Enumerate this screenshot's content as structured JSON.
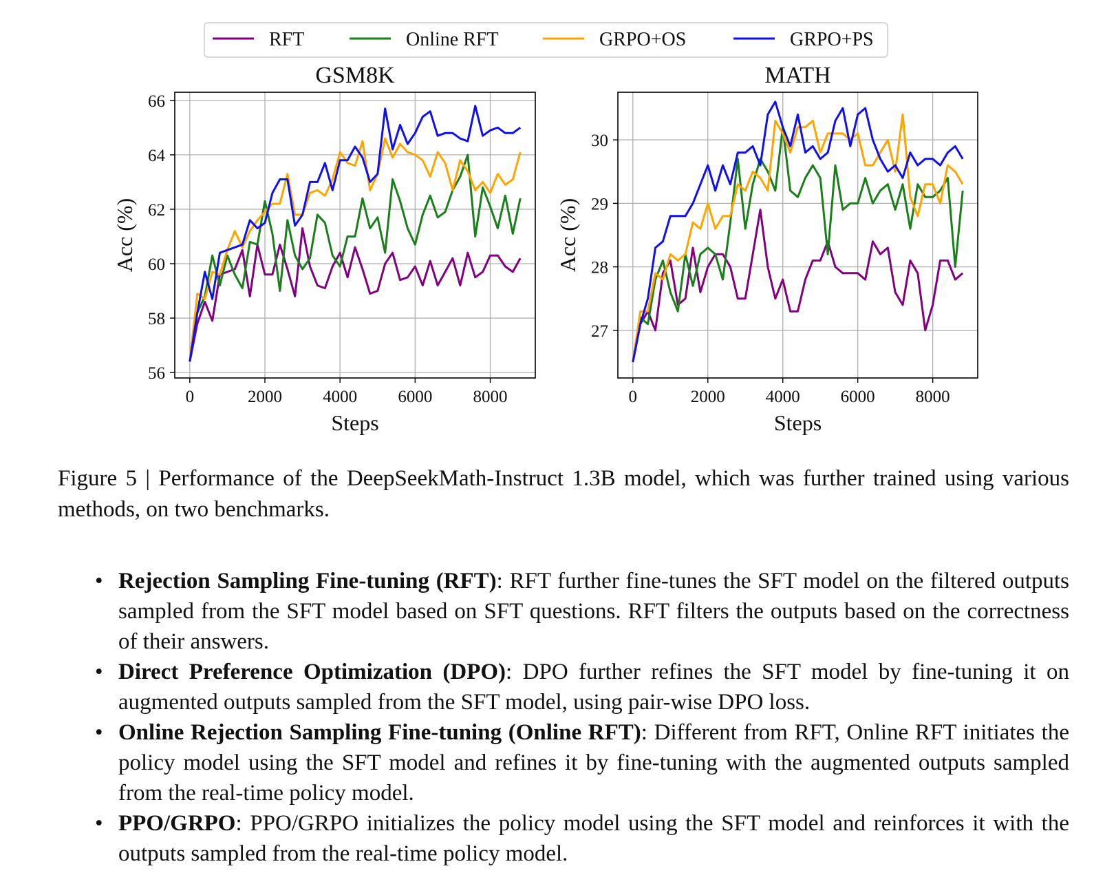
{
  "colors": {
    "RFT": "#800080",
    "Online RFT": "#1a7f1a",
    "GRPO+OS": "#ffa500",
    "GRPO+PS": "#1010ee"
  },
  "legend": [
    "RFT",
    "Online RFT",
    "GRPO+OS",
    "GRPO+PS"
  ],
  "chart_data": [
    {
      "type": "line",
      "title": "GSM8K",
      "xlabel": "Steps",
      "ylabel": "Acc (%)",
      "xlim": [
        -400,
        9200
      ],
      "ylim": [
        55.8,
        66.3
      ],
      "xticks": [
        0,
        2000,
        4000,
        6000,
        8000
      ],
      "yticks": [
        56,
        58,
        60,
        62,
        64,
        66
      ],
      "grid": true,
      "x": [
        0,
        200,
        400,
        600,
        800,
        1000,
        1200,
        1400,
        1600,
        1800,
        2000,
        2200,
        2400,
        2600,
        2800,
        3000,
        3200,
        3400,
        3600,
        3800,
        4000,
        4200,
        4400,
        4600,
        4800,
        5000,
        5200,
        5400,
        5600,
        5800,
        6000,
        6200,
        6400,
        6600,
        6800,
        7000,
        7200,
        7400,
        7600,
        7800,
        8000,
        8200,
        8400,
        8600,
        8800
      ],
      "series": [
        {
          "name": "RFT",
          "values": [
            56.4,
            57.8,
            58.6,
            57.9,
            59.6,
            59.7,
            59.8,
            60.5,
            58.8,
            60.7,
            59.6,
            59.6,
            60.7,
            59.8,
            58.8,
            61.3,
            59.9,
            59.2,
            59.1,
            59.9,
            60.4,
            59.5,
            60.6,
            59.8,
            58.9,
            59.0,
            60.0,
            60.4,
            59.4,
            59.5,
            59.9,
            59.2,
            60.1,
            59.2,
            59.7,
            60.2,
            59.2,
            60.4,
            59.5,
            59.7,
            60.3,
            60.3,
            59.9,
            59.7,
            60.2
          ]
        },
        {
          "name": "Online RFT",
          "values": [
            56.4,
            58.2,
            58.8,
            60.3,
            59.2,
            60.3,
            59.6,
            59.1,
            60.8,
            60.7,
            62.3,
            61.1,
            59.0,
            61.6,
            60.3,
            59.8,
            60.2,
            61.8,
            61.5,
            60.3,
            59.9,
            61.0,
            61.0,
            62.4,
            61.3,
            61.7,
            60.4,
            63.1,
            62.3,
            61.3,
            60.7,
            61.8,
            62.5,
            61.7,
            61.9,
            62.7,
            63.2,
            64.0,
            61.0,
            62.8,
            62.1,
            61.3,
            62.5,
            61.1,
            62.4
          ]
        },
        {
          "name": "GRPO+OS",
          "values": [
            56.4,
            58.9,
            58.7,
            59.7,
            59.6,
            60.5,
            61.2,
            60.6,
            61.2,
            61.6,
            61.9,
            62.2,
            62.2,
            63.3,
            61.8,
            61.8,
            62.6,
            62.7,
            62.5,
            63.1,
            64.1,
            63.7,
            63.6,
            64.5,
            62.7,
            63.3,
            64.6,
            63.9,
            64.4,
            64.1,
            64.0,
            63.8,
            63.2,
            64.1,
            63.7,
            62.7,
            63.8,
            63.4,
            62.7,
            63.0,
            62.6,
            63.3,
            62.9,
            63.1,
            64.1
          ]
        },
        {
          "name": "GRPO+PS",
          "values": [
            56.4,
            58.2,
            59.7,
            58.7,
            60.4,
            60.5,
            60.6,
            60.7,
            61.6,
            61.3,
            61.5,
            62.6,
            63.1,
            63.1,
            61.4,
            61.8,
            63.0,
            63.0,
            63.7,
            62.7,
            63.8,
            63.8,
            64.3,
            63.9,
            63.0,
            63.3,
            65.7,
            64.2,
            65.1,
            64.4,
            64.8,
            65.4,
            65.6,
            64.7,
            64.8,
            64.8,
            64.6,
            64.5,
            65.8,
            64.7,
            64.9,
            65.0,
            64.8,
            64.8,
            65.0
          ]
        }
      ]
    },
    {
      "type": "line",
      "title": "MATH",
      "xlabel": "Steps",
      "ylabel": "Acc (%)",
      "xlim": [
        -400,
        9200
      ],
      "ylim": [
        26.25,
        30.75
      ],
      "xticks": [
        0,
        2000,
        4000,
        6000,
        8000
      ],
      "yticks": [
        27,
        28,
        29,
        30
      ],
      "grid": true,
      "x": [
        0,
        200,
        400,
        600,
        800,
        1000,
        1200,
        1400,
        1600,
        1800,
        2000,
        2200,
        2400,
        2600,
        2800,
        3000,
        3200,
        3400,
        3600,
        3800,
        4000,
        4200,
        4400,
        4600,
        4800,
        5000,
        5200,
        5400,
        5600,
        5800,
        6000,
        6200,
        6400,
        6600,
        6800,
        7000,
        7200,
        7400,
        7600,
        7800,
        8000,
        8200,
        8400,
        8600,
        8800
      ],
      "series": [
        {
          "name": "RFT",
          "values": [
            26.5,
            27.1,
            27.3,
            27.0,
            27.9,
            28.1,
            27.4,
            27.5,
            28.3,
            27.6,
            28.0,
            28.2,
            28.2,
            28.0,
            27.5,
            27.5,
            28.2,
            28.9,
            28.0,
            27.5,
            27.8,
            27.3,
            27.3,
            27.8,
            28.1,
            28.1,
            28.4,
            28.0,
            27.9,
            27.9,
            27.9,
            27.8,
            28.4,
            28.2,
            28.3,
            27.6,
            27.4,
            28.1,
            27.9,
            27.0,
            27.4,
            28.1,
            28.1,
            27.8,
            27.9
          ]
        },
        {
          "name": "Online RFT",
          "values": [
            26.5,
            27.2,
            27.1,
            27.8,
            28.1,
            27.6,
            27.3,
            28.2,
            27.7,
            28.2,
            28.3,
            28.2,
            27.8,
            28.7,
            29.7,
            28.6,
            29.3,
            29.7,
            29.5,
            29.2,
            30.2,
            29.2,
            29.1,
            29.4,
            29.6,
            29.4,
            28.2,
            29.6,
            28.9,
            29.0,
            29.0,
            29.4,
            29.0,
            29.2,
            29.3,
            28.9,
            29.3,
            28.6,
            29.3,
            29.1,
            29.1,
            29.2,
            29.4,
            28.0,
            29.2
          ]
        },
        {
          "name": "GRPO+OS",
          "values": [
            26.5,
            27.3,
            27.3,
            27.9,
            27.8,
            28.2,
            28.1,
            28.2,
            28.7,
            28.6,
            29.0,
            28.6,
            28.8,
            28.8,
            29.3,
            29.2,
            29.5,
            29.4,
            29.2,
            30.3,
            30.1,
            29.8,
            30.2,
            30.2,
            30.3,
            29.8,
            30.1,
            30.1,
            30.1,
            30.0,
            30.1,
            29.6,
            29.6,
            29.8,
            30.0,
            29.5,
            30.4,
            29.1,
            28.8,
            29.3,
            29.3,
            29.0,
            29.6,
            29.5,
            29.3
          ]
        },
        {
          "name": "GRPO+PS",
          "values": [
            26.5,
            27.1,
            27.5,
            28.3,
            28.4,
            28.8,
            28.8,
            28.8,
            29.0,
            29.3,
            29.6,
            29.2,
            29.6,
            29.3,
            29.8,
            29.8,
            29.9,
            29.6,
            30.4,
            30.6,
            30.2,
            29.9,
            30.4,
            29.8,
            29.9,
            29.7,
            29.8,
            30.3,
            30.5,
            29.9,
            30.4,
            30.5,
            30.0,
            29.7,
            29.5,
            29.6,
            29.4,
            29.8,
            29.6,
            29.7,
            29.7,
            29.6,
            29.8,
            29.9,
            29.7
          ]
        }
      ]
    }
  ],
  "caption": "Figure 5 | Performance of the DeepSeekMath-Instruct 1.3B model, which was further trained using various methods, on two benchmarks.",
  "bullets": [
    {
      "term": "Rejection Sampling Fine-tuning (RFT)",
      "text": ": RFT further fine-tunes the SFT model on the filtered outputs sampled from the SFT model based on SFT questions.  RFT filters the outputs based on the correctness of their answers."
    },
    {
      "term": "Direct Preference Optimization (DPO)",
      "text": ": DPO further refines the SFT model by fine-tuning it on augmented outputs sampled from the SFT model, using pair-wise DPO loss."
    },
    {
      "term": "Online Rejection Sampling Fine-tuning (Online RFT)",
      "text": ": Different from RFT, Online RFT initiates the policy model using the SFT model and refines it by fine-tuning with the augmented outputs sampled from the real-time policy model."
    },
    {
      "term": "PPO/GRPO",
      "text": ": PPO/GRPO initializes the policy model using the SFT model and reinforces it with the outputs sampled from the real-time policy model."
    }
  ]
}
